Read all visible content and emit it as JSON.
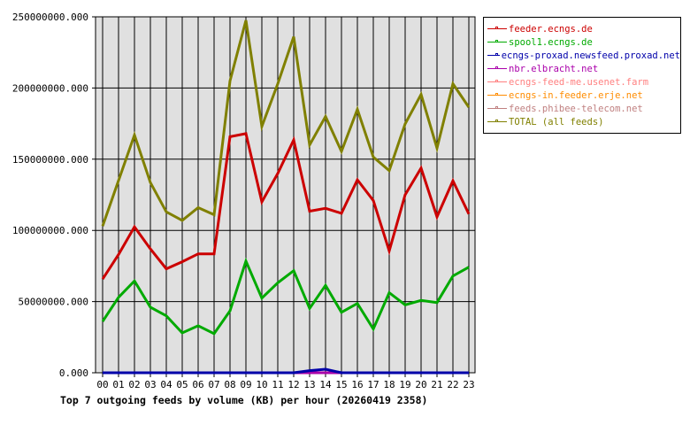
{
  "chart_data": {
    "type": "line",
    "title": "Top 7 outgoing feeds by volume (KB) per hour (20260419 2358)",
    "xlabel": "",
    "ylabel": "",
    "ylim": [
      0,
      250000000
    ],
    "yticks": [
      "0.000",
      "50000000.000",
      "100000000.000",
      "150000000.000",
      "200000000.000",
      "250000000.000"
    ],
    "grid": true,
    "legend_position": "right",
    "categories": [
      "00",
      "01",
      "02",
      "03",
      "04",
      "05",
      "06",
      "07",
      "08",
      "09",
      "10",
      "11",
      "12",
      "13",
      "14",
      "15",
      "16",
      "17",
      "18",
      "19",
      "20",
      "21",
      "22",
      "23"
    ],
    "series": [
      {
        "name": "feeder.ecngs.de",
        "color": "#cc0000",
        "values": [
          65800000,
          83000000,
          102500000,
          87000000,
          73000000,
          78000000,
          83500000,
          83500000,
          165800000,
          168000000,
          120000000,
          140000000,
          163500000,
          113500000,
          115500000,
          112000000,
          135500000,
          121000000,
          85600000,
          125000000,
          143700000,
          109500000,
          134800000,
          111500000
        ]
      },
      {
        "name": "spool1.ecngs.de",
        "color": "#00aa00",
        "values": [
          36000000,
          53000000,
          64500000,
          46000000,
          40000000,
          28000000,
          33000000,
          27500000,
          43500000,
          78400000,
          52400000,
          63200000,
          71700000,
          45200000,
          61400000,
          42500000,
          48700000,
          30700000,
          56200000,
          47700000,
          50800000,
          49300000,
          68000000,
          74200000
        ]
      },
      {
        "name": "ecngs-proxad.newsfeed.proxad.net",
        "color": "#0000aa",
        "values": [
          0,
          0,
          0,
          0,
          0,
          0,
          0,
          0,
          0,
          0,
          0,
          0,
          0,
          1500000,
          2500000,
          0,
          0,
          0,
          0,
          0,
          0,
          0,
          0,
          0
        ]
      },
      {
        "name": "nbr.elbracht.net",
        "color": "#aa00aa",
        "values": [
          0,
          0,
          0,
          0,
          0,
          0,
          0,
          0,
          0,
          0,
          0,
          0,
          0,
          0,
          0,
          0,
          0,
          0,
          0,
          0,
          0,
          0,
          0,
          0
        ]
      },
      {
        "name": "ecngs-feed-me.usenet.farm",
        "color": "#ff8080",
        "values": [
          0,
          0,
          0,
          0,
          0,
          0,
          0,
          0,
          0,
          0,
          0,
          0,
          0,
          0,
          0,
          0,
          0,
          0,
          0,
          0,
          0,
          0,
          0,
          0
        ]
      },
      {
        "name": "ecngs-in.feeder.erje.net",
        "color": "#ff8c00",
        "values": [
          0,
          0,
          0,
          0,
          0,
          0,
          0,
          0,
          0,
          0,
          0,
          0,
          0,
          0,
          0,
          0,
          0,
          0,
          0,
          0,
          0,
          0,
          0,
          0
        ]
      },
      {
        "name": "feeds.phibee-telecom.net",
        "color": "#c08080",
        "values": [
          0,
          0,
          0,
          0,
          0,
          0,
          0,
          0,
          0,
          0,
          0,
          0,
          0,
          0,
          0,
          0,
          0,
          0,
          0,
          0,
          0,
          0,
          0,
          0
        ]
      },
      {
        "name": "TOTAL (all feeds)",
        "color": "#808000",
        "values": [
          103000000,
          135000000,
          167000000,
          133600000,
          113000000,
          107000000,
          116000000,
          111000000,
          205000000,
          247500000,
          173000000,
          203000000,
          236000000,
          160000000,
          180000000,
          155500000,
          185000000,
          151500000,
          142000000,
          174800000,
          195500000,
          157800000,
          203000000,
          186500000
        ]
      }
    ]
  },
  "legend": {
    "items": [
      {
        "label": "feeder.ecngs.de",
        "color": "#cc0000"
      },
      {
        "label": "spool1.ecngs.de",
        "color": "#00aa00"
      },
      {
        "label": "ecngs-proxad.newsfeed.proxad.net",
        "color": "#0000aa"
      },
      {
        "label": "nbr.elbracht.net",
        "color": "#aa00aa"
      },
      {
        "label": "ecngs-feed-me.usenet.farm",
        "color": "#ff8080"
      },
      {
        "label": "ecngs-in.feeder.erje.net",
        "color": "#ff8c00"
      },
      {
        "label": "feeds.phibee-telecom.net",
        "color": "#c08080"
      },
      {
        "label": "TOTAL (all feeds)",
        "color": "#808000"
      }
    ]
  },
  "colors": {
    "plot_background": "#e0e0e0",
    "grid": "#000000"
  }
}
